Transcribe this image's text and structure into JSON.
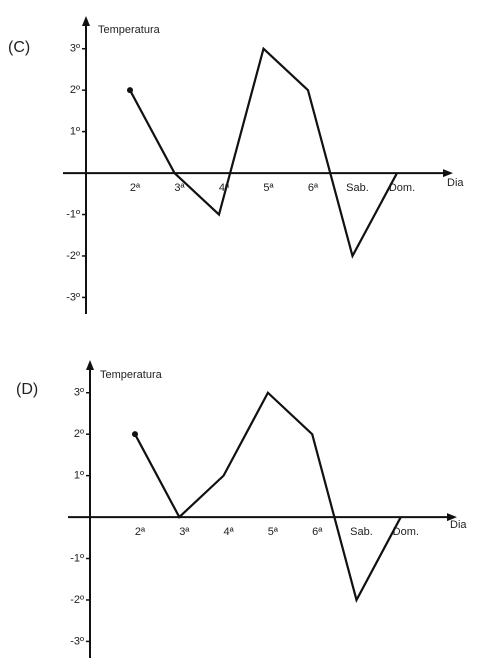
{
  "chart_data": [
    {
      "type": "line",
      "label": "(C)",
      "y_label": "Temperatura",
      "x_label": "Dia",
      "categories": [
        "2ª",
        "3ª",
        "4ª",
        "5ª",
        "6ª",
        "Sab.",
        "Dom."
      ],
      "values": [
        2,
        0,
        -1,
        3,
        2,
        -2,
        0
      ],
      "color": "#111111",
      "ylim": [
        -3.4,
        3.5
      ],
      "yticks": [
        {
          "value": 3,
          "label": "3º"
        },
        {
          "value": 2,
          "label": "2º"
        },
        {
          "value": 1,
          "label": "1º"
        },
        {
          "value": -1,
          "label": "-1º"
        },
        {
          "value": -2,
          "label": "-2º"
        },
        {
          "value": -3,
          "label": "-3º"
        }
      ]
    },
    {
      "type": "line",
      "label": "(D)",
      "y_label": "Temperatura",
      "x_label": "Dia",
      "categories": [
        "2ª",
        "3ª",
        "4ª",
        "5ª",
        "6ª",
        "Sab.",
        "Dom."
      ],
      "values": [
        2,
        0,
        1,
        3,
        2,
        -2,
        0
      ],
      "color": "#111111",
      "ylim": [
        -3.4,
        3.5
      ],
      "yticks": [
        {
          "value": 3,
          "label": "3º"
        },
        {
          "value": 2,
          "label": "2º"
        },
        {
          "value": 1,
          "label": "1º"
        },
        {
          "value": -1,
          "label": "-1º"
        },
        {
          "value": -2,
          "label": "-2º"
        },
        {
          "value": -3,
          "label": "-3º"
        }
      ]
    }
  ]
}
